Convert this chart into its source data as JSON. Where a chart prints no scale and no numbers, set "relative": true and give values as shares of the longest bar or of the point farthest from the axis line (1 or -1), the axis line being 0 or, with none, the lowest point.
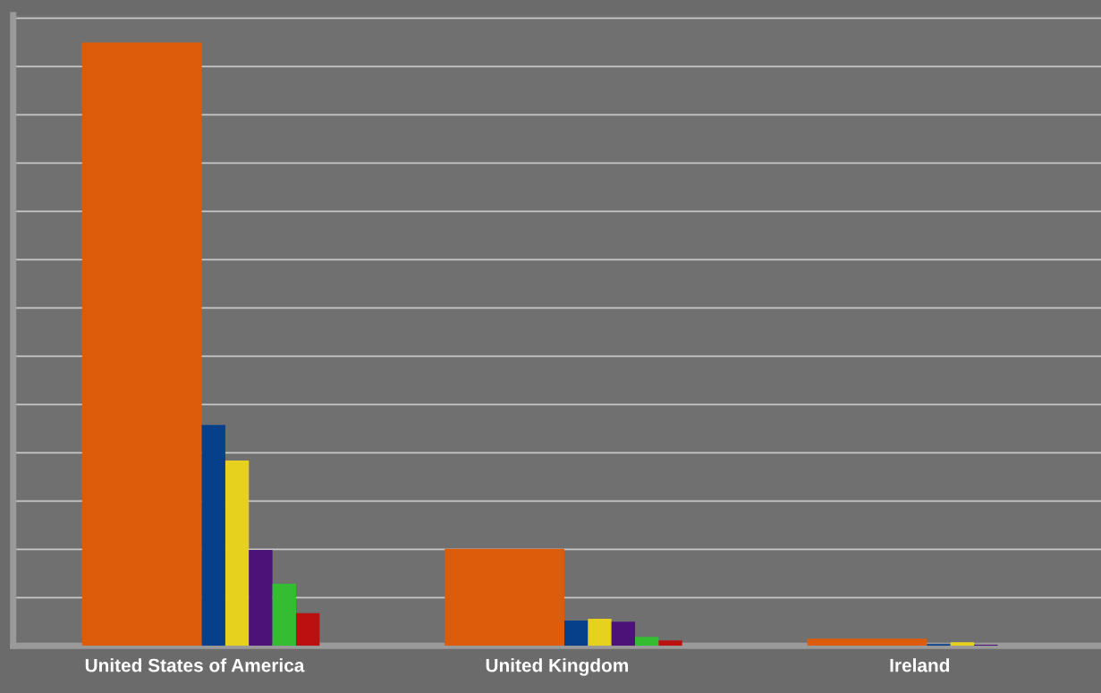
{
  "chart_data": {
    "type": "bar",
    "relative": true,
    "grid": "y",
    "categories": [
      "United States of America",
      "United Kingdom",
      "Ireland"
    ],
    "series": [
      {
        "color": "#dc5c0c",
        "values": [
          1,
          0.161,
          0.012
        ]
      },
      {
        "color": "#063f8a",
        "values": [
          0.366,
          0.042,
          0.003
        ]
      },
      {
        "color": "#e6d21e",
        "values": [
          0.307,
          0.045,
          0.006
        ]
      },
      {
        "color": "#4c1278",
        "values": [
          0.159,
          0.04,
          0.002
        ]
      },
      {
        "color": "#34bd32",
        "values": [
          0.103,
          0.015,
          0
        ]
      },
      {
        "color": "#bc0f0f",
        "values": [
          0.054,
          0.009,
          0
        ]
      }
    ]
  }
}
